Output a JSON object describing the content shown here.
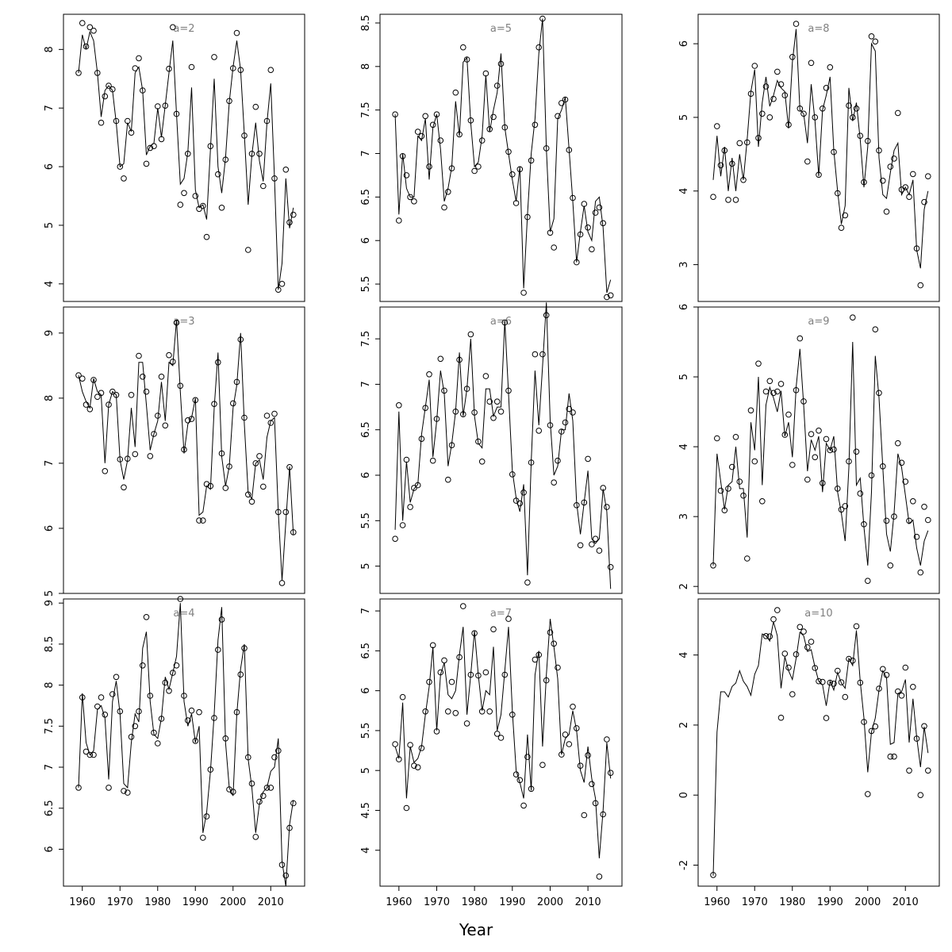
{
  "figure": {
    "xlabel": "Year",
    "x_ticks": [
      1960,
      1970,
      1980,
      1990,
      2000,
      2010
    ],
    "xlim": [
      1955,
      2019
    ],
    "series_style": {
      "line": "#000000",
      "points": "open-circles",
      "label_color": "#808080"
    }
  },
  "chart_data": [
    {
      "type": "line",
      "title": "a=2",
      "ylim": [
        3.7,
        8.6
      ],
      "y_ticks": [
        4,
        5,
        6,
        7,
        8
      ],
      "x_start": 1959,
      "points": [
        7.6,
        8.45,
        8.05,
        8.38,
        8.32,
        7.6,
        6.75,
        7.2,
        7.38,
        7.32,
        6.78,
        6.0,
        5.8,
        6.78,
        6.58,
        7.68,
        7.85,
        7.3,
        6.05,
        6.32,
        6.35,
        7.03,
        6.47,
        7.04,
        7.67,
        8.38,
        6.9,
        5.35,
        5.55,
        6.22,
        7.7,
        5.5,
        5.28,
        5.33,
        4.8,
        6.35,
        7.87,
        5.87,
        5.3,
        6.12,
        7.12,
        7.68,
        8.28,
        7.65,
        6.53,
        4.58,
        6.22,
        7.02,
        6.22,
        5.67,
        6.78,
        7.65,
        5.8,
        3.9,
        4.0,
        5.95,
        5.05,
        5.18
      ],
      "line": [
        7.6,
        8.25,
        8.0,
        8.3,
        8.15,
        7.6,
        6.85,
        7.3,
        7.38,
        7.3,
        6.75,
        6.0,
        6.05,
        6.75,
        6.6,
        7.6,
        7.7,
        7.3,
        6.2,
        6.35,
        6.4,
        7.0,
        6.5,
        7.05,
        7.6,
        8.15,
        6.9,
        5.7,
        5.8,
        6.25,
        7.35,
        5.6,
        5.3,
        5.35,
        5.1,
        6.3,
        7.5,
        6.0,
        5.55,
        6.15,
        7.1,
        7.7,
        8.15,
        7.65,
        6.55,
        5.35,
        6.2,
        6.75,
        6.1,
        5.75,
        6.75,
        7.42,
        5.8,
        3.9,
        4.35,
        5.8,
        4.95,
        5.3
      ]
    },
    {
      "type": "line",
      "title": "a=5",
      "ylim": [
        5.3,
        8.6
      ],
      "y_ticks": [
        5.5,
        6.0,
        6.5,
        7.0,
        7.5,
        8.0,
        8.5
      ],
      "x_start": 1959,
      "points": [
        7.45,
        6.23,
        6.97,
        6.75,
        6.5,
        6.45,
        7.25,
        7.2,
        7.43,
        6.85,
        7.33,
        7.45,
        7.15,
        6.38,
        6.56,
        6.83,
        7.7,
        7.22,
        8.22,
        8.08,
        7.38,
        6.8,
        6.85,
        7.15,
        7.92,
        7.28,
        7.42,
        7.78,
        8.03,
        7.3,
        7.02,
        6.76,
        6.43,
        6.82,
        5.4,
        6.27,
        6.92,
        7.33,
        8.22,
        8.55,
        7.06,
        6.09,
        5.92,
        7.43,
        7.58,
        7.62,
        7.04,
        6.49,
        5.75,
        6.07,
        6.42,
        6.15,
        5.9,
        6.32,
        6.38,
        6.2,
        5.35,
        5.37
      ],
      "line": [
        7.45,
        6.3,
        7.0,
        6.6,
        6.5,
        6.5,
        7.2,
        7.15,
        7.4,
        6.7,
        7.3,
        7.45,
        7.05,
        6.45,
        6.6,
        6.85,
        7.6,
        7.2,
        8.05,
        8.1,
        7.35,
        6.85,
        6.9,
        7.2,
        7.9,
        7.25,
        7.5,
        7.7,
        8.15,
        7.3,
        7.0,
        6.7,
        6.45,
        6.85,
        5.45,
        6.3,
        7.0,
        7.4,
        8.15,
        8.55,
        7.05,
        6.1,
        6.25,
        7.4,
        7.5,
        7.65,
        7.05,
        6.45,
        5.75,
        6.1,
        6.4,
        6.1,
        6.0,
        6.45,
        6.5,
        6.15,
        5.4,
        5.55
      ]
    },
    {
      "type": "line",
      "title": "a=8",
      "ylim": [
        2.5,
        6.4
      ],
      "y_ticks": [
        3,
        4,
        5,
        6
      ],
      "x_start": 1959,
      "points": [
        3.92,
        4.88,
        4.35,
        4.55,
        3.88,
        4.37,
        3.88,
        4.65,
        4.15,
        4.66,
        5.32,
        5.7,
        4.72,
        5.05,
        5.42,
        5.0,
        5.25,
        5.62,
        5.45,
        5.3,
        4.9,
        5.82,
        6.27,
        5.12,
        5.05,
        4.4,
        5.74,
        5.0,
        4.22,
        5.12,
        5.4,
        5.68,
        4.53,
        3.97,
        3.5,
        3.67,
        5.16,
        5.0,
        5.12,
        4.75,
        4.12,
        4.68,
        6.1,
        6.03,
        4.55,
        4.14,
        3.72,
        4.33,
        4.44,
        5.06,
        4.02,
        4.05,
        3.92,
        4.23,
        3.22,
        2.72,
        3.85,
        4.2
      ],
      "line": [
        4.15,
        4.75,
        4.2,
        4.6,
        4.0,
        4.45,
        4.0,
        4.5,
        4.15,
        4.7,
        5.35,
        5.65,
        4.6,
        5.2,
        5.55,
        5.15,
        5.3,
        5.5,
        5.4,
        5.35,
        4.85,
        5.75,
        6.2,
        5.1,
        5.05,
        4.65,
        5.45,
        4.95,
        4.2,
        5.1,
        5.3,
        5.55,
        4.55,
        4.0,
        3.55,
        3.8,
        5.4,
        4.95,
        5.2,
        4.7,
        4.05,
        4.6,
        6.0,
        5.9,
        4.45,
        3.95,
        3.9,
        4.25,
        4.55,
        4.65,
        3.95,
        4.05,
        3.95,
        4.15,
        3.2,
        2.95,
        3.75,
        4.0
      ]
    },
    {
      "type": "line",
      "title": "a=3",
      "ylim": [
        5.0,
        9.4
      ],
      "y_ticks": [
        5,
        6,
        7,
        8,
        9
      ],
      "x_start": 1959,
      "points": [
        8.35,
        8.3,
        7.9,
        7.83,
        8.28,
        8.02,
        8.08,
        6.88,
        7.9,
        8.1,
        8.05,
        7.06,
        6.63,
        7.07,
        8.05,
        7.14,
        8.65,
        8.33,
        8.1,
        7.11,
        7.45,
        7.73,
        8.33,
        7.58,
        8.66,
        8.56,
        9.16,
        8.19,
        7.21,
        7.66,
        7.68,
        7.97,
        6.12,
        6.12,
        6.68,
        6.65,
        7.91,
        8.55,
        7.15,
        6.62,
        6.95,
        7.92,
        8.25,
        8.9,
        7.7,
        6.52,
        6.41,
        7.0,
        7.11,
        6.64,
        7.73,
        7.62,
        7.76,
        6.25,
        5.16,
        6.25,
        6.94,
        5.94
      ],
      "line": [
        8.35,
        8.1,
        7.95,
        7.85,
        8.3,
        8.1,
        8.05,
        7.0,
        7.9,
        8.1,
        8.05,
        7.05,
        6.75,
        7.05,
        7.85,
        7.25,
        8.55,
        8.55,
        7.9,
        7.2,
        7.45,
        7.65,
        8.25,
        7.65,
        8.55,
        8.5,
        9.2,
        8.1,
        7.15,
        7.6,
        7.7,
        8.0,
        6.2,
        6.25,
        6.65,
        6.6,
        7.85,
        8.7,
        7.1,
        6.65,
        6.95,
        7.85,
        8.2,
        9.0,
        7.6,
        6.55,
        6.45,
        7.0,
        7.05,
        6.75,
        7.4,
        7.65,
        7.7,
        6.25,
        5.2,
        6.1,
        6.95,
        5.9
      ]
    },
    {
      "type": "line",
      "title": "a=6",
      "ylim": [
        4.7,
        7.85
      ],
      "y_ticks": [
        5.0,
        5.5,
        6.0,
        6.5,
        7.0,
        7.5
      ],
      "x_start": 1959,
      "points": [
        5.3,
        6.77,
        5.45,
        6.17,
        5.65,
        5.86,
        5.89,
        6.4,
        6.74,
        7.11,
        6.16,
        6.62,
        7.28,
        6.93,
        5.95,
        6.33,
        6.7,
        7.27,
        6.67,
        6.95,
        7.55,
        6.69,
        6.37,
        6.15,
        7.09,
        6.81,
        6.63,
        6.81,
        6.7,
        7.68,
        6.93,
        6.01,
        5.72,
        5.69,
        5.81,
        4.82,
        6.14,
        7.33,
        6.49,
        7.33,
        7.76,
        6.55,
        5.92,
        6.16,
        6.48,
        6.58,
        6.73,
        6.69,
        5.67,
        5.23,
        5.7,
        6.18,
        5.24,
        5.3,
        5.17,
        5.86,
        5.65,
        4.99
      ],
      "line": [
        5.4,
        6.7,
        5.5,
        6.15,
        5.7,
        5.85,
        5.9,
        6.45,
        6.75,
        7.05,
        6.2,
        6.6,
        7.15,
        6.9,
        6.1,
        6.35,
        6.7,
        7.35,
        6.65,
        6.95,
        7.5,
        6.65,
        6.35,
        6.3,
        6.95,
        6.95,
        6.65,
        6.75,
        6.75,
        7.7,
        6.9,
        6.05,
        5.75,
        5.6,
        5.9,
        4.9,
        6.15,
        7.15,
        6.55,
        7.2,
        7.9,
        6.6,
        6.0,
        6.1,
        6.5,
        6.5,
        6.9,
        6.6,
        5.7,
        5.35,
        5.7,
        6.05,
        5.3,
        5.25,
        5.3,
        5.85,
        5.6,
        4.75
      ]
    },
    {
      "type": "line",
      "title": "a=9",
      "ylim": [
        1.9,
        6.0
      ],
      "y_ticks": [
        2,
        3,
        4,
        5,
        6
      ],
      "x_start": 1959,
      "points": [
        2.3,
        4.12,
        3.37,
        3.09,
        3.4,
        3.71,
        4.14,
        3.5,
        3.3,
        2.4,
        4.52,
        3.79,
        5.19,
        3.22,
        4.79,
        4.94,
        4.77,
        4.79,
        4.9,
        4.17,
        4.46,
        3.74,
        4.81,
        5.55,
        4.65,
        3.53,
        4.18,
        3.85,
        4.23,
        3.48,
        4.11,
        3.95,
        3.96,
        3.4,
        3.1,
        3.15,
        3.79,
        5.85,
        3.93,
        3.33,
        2.89,
        2.08,
        3.59,
        5.68,
        4.77,
        3.72,
        2.94,
        2.3,
        3.0,
        4.05,
        3.77,
        3.5,
        2.94,
        3.22,
        2.71,
        2.2,
        3.14,
        2.95
      ],
      "line": [
        2.3,
        3.9,
        3.5,
        3.1,
        3.45,
        3.5,
        4.0,
        3.4,
        3.4,
        2.7,
        4.35,
        3.95,
        5.0,
        3.45,
        4.6,
        4.85,
        4.7,
        4.5,
        4.8,
        4.15,
        4.35,
        3.85,
        4.85,
        5.4,
        4.6,
        3.65,
        4.1,
        3.95,
        4.15,
        3.35,
        4.05,
        3.95,
        4.15,
        3.35,
        3.05,
        2.65,
        3.7,
        5.5,
        3.45,
        3.55,
        2.85,
        2.3,
        3.35,
        5.3,
        4.7,
        3.7,
        2.75,
        2.5,
        3.05,
        3.9,
        3.7,
        3.3,
        2.9,
        2.95,
        2.55,
        2.3,
        2.65,
        2.8
      ]
    },
    {
      "type": "line",
      "title": "a=4",
      "ylim": [
        5.55,
        9.05
      ],
      "y_ticks": [
        6.0,
        6.5,
        7.0,
        7.5,
        8.0,
        8.5,
        9.0
      ],
      "x_start": 1959,
      "points": [
        6.75,
        7.85,
        7.19,
        7.15,
        7.15,
        7.74,
        7.85,
        7.64,
        6.75,
        7.89,
        8.1,
        7.68,
        6.71,
        6.69,
        7.37,
        7.5,
        7.68,
        8.24,
        8.83,
        7.87,
        7.42,
        7.29,
        7.59,
        8.03,
        7.93,
        8.15,
        8.24,
        9.05,
        7.87,
        7.57,
        7.69,
        7.32,
        7.67,
        6.14,
        6.4,
        6.97,
        7.6,
        8.43,
        8.8,
        7.35,
        6.73,
        6.7,
        7.67,
        8.13,
        8.45,
        7.12,
        6.8,
        6.15,
        6.58,
        6.65,
        6.75,
        6.75,
        7.12,
        7.2,
        5.81,
        5.68,
        6.26,
        6.56
      ],
      "line": [
        6.75,
        7.9,
        7.3,
        7.15,
        7.2,
        7.7,
        7.75,
        7.6,
        6.85,
        7.8,
        8.05,
        7.65,
        6.8,
        6.75,
        7.3,
        7.65,
        7.55,
        8.45,
        8.65,
        7.8,
        7.4,
        7.35,
        7.6,
        8.1,
        7.95,
        8.15,
        8.35,
        9.0,
        7.8,
        7.5,
        7.65,
        7.3,
        7.5,
        6.2,
        6.45,
        6.95,
        7.65,
        8.55,
        8.95,
        7.3,
        6.75,
        6.65,
        7.65,
        8.2,
        8.5,
        7.1,
        6.75,
        6.2,
        6.55,
        6.7,
        6.75,
        6.95,
        7.0,
        7.35,
        5.85,
        5.55,
        6.3,
        6.6
      ]
    },
    {
      "type": "line",
      "title": "a=7",
      "ylim": [
        3.55,
        7.15
      ],
      "y_ticks": [
        4.0,
        4.5,
        5.0,
        5.5,
        6.0,
        6.5,
        7.0
      ],
      "x_start": 1959,
      "points": [
        5.33,
        5.14,
        5.92,
        4.53,
        5.32,
        5.06,
        5.04,
        5.28,
        5.74,
        6.11,
        6.57,
        5.49,
        6.23,
        6.38,
        5.74,
        6.11,
        5.72,
        6.42,
        7.06,
        5.59,
        6.2,
        6.72,
        6.19,
        5.74,
        6.23,
        5.74,
        6.77,
        5.46,
        5.41,
        6.2,
        6.9,
        5.7,
        4.95,
        4.88,
        4.56,
        5.17,
        4.77,
        6.39,
        6.45,
        5.07,
        6.13,
        6.73,
        6.59,
        6.29,
        5.2,
        5.45,
        5.33,
        5.8,
        5.53,
        5.06,
        4.44,
        5.19,
        4.83,
        4.59,
        3.67,
        4.45,
        5.39,
        4.97
      ],
      "line": [
        5.3,
        5.15,
        5.85,
        4.65,
        5.3,
        5.1,
        5.15,
        5.3,
        5.7,
        6.05,
        6.55,
        5.5,
        6.2,
        6.35,
        5.95,
        5.9,
        6.0,
        6.45,
        6.8,
        5.7,
        6.2,
        6.75,
        6.2,
        5.75,
        6.0,
        5.95,
        6.55,
        5.5,
        5.7,
        6.25,
        6.8,
        5.75,
        5.0,
        4.85,
        4.65,
        5.45,
        4.75,
        6.2,
        6.5,
        5.3,
        6.2,
        6.9,
        6.55,
        6.15,
        5.2,
        5.4,
        5.45,
        5.75,
        5.5,
        5.0,
        4.85,
        5.3,
        4.9,
        4.65,
        3.9,
        4.5,
        5.35,
        4.9
      ]
    },
    {
      "type": "line",
      "title": "a=10",
      "ylim": [
        -2.6,
        5.6
      ],
      "y_ticks": [
        -2,
        0,
        2,
        4
      ],
      "x_start": 1959,
      "points": [
        -2.28,
        null,
        null,
        null,
        null,
        null,
        null,
        null,
        null,
        null,
        null,
        null,
        null,
        null,
        4.54,
        4.53,
        5.02,
        5.28,
        2.21,
        4.04,
        3.64,
        2.88,
        4.02,
        4.8,
        4.67,
        4.22,
        4.38,
        3.63,
        3.25,
        3.23,
        2.2,
        3.21,
        3.18,
        3.55,
        3.22,
        2.8,
        3.89,
        3.84,
        4.82,
        3.21,
        2.09,
        0.03,
        1.83,
        1.96,
        3.04,
        3.6,
        3.43,
        1.1,
        1.1,
        2.96,
        2.84,
        3.64,
        0.7,
        3.09,
        1.61,
        0.0,
        1.97,
        0.7
      ],
      "line": [
        -2.3,
        1.8,
        2.95,
        2.95,
        2.8,
        3.1,
        3.2,
        3.55,
        3.25,
        3.1,
        2.85,
        3.45,
        3.7,
        4.6,
        4.55,
        4.4,
        4.95,
        4.55,
        3.05,
        3.95,
        3.55,
        3.3,
        3.9,
        4.65,
        4.55,
        4.1,
        4.15,
        3.65,
        3.25,
        3.15,
        2.55,
        3.25,
        3.0,
        3.5,
        3.2,
        3.05,
        3.9,
        3.7,
        4.7,
        3.25,
        2.2,
        0.65,
        1.8,
        2.2,
        3.0,
        3.55,
        3.35,
        1.45,
        1.5,
        2.9,
        2.95,
        3.3,
        1.5,
        2.75,
        1.65,
        0.8,
        1.95,
        1.2
      ]
    }
  ]
}
